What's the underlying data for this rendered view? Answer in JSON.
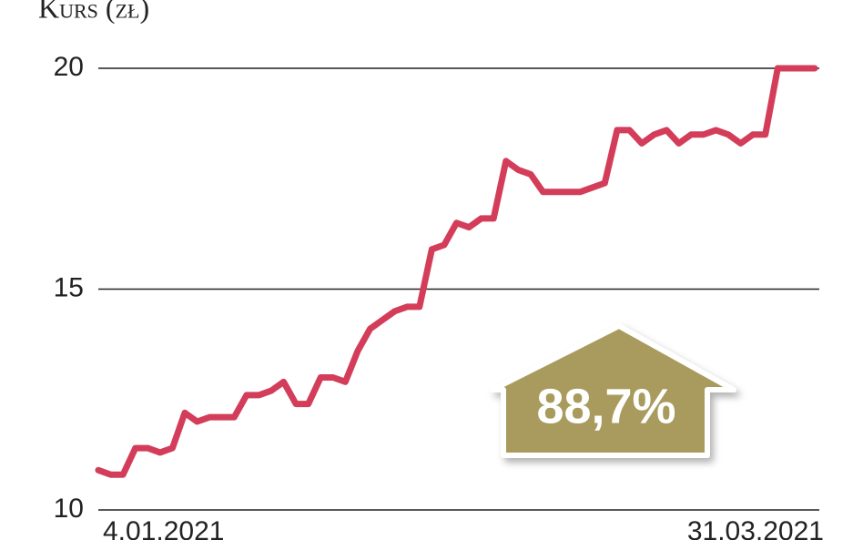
{
  "chart_data": {
    "type": "line",
    "title": "Kurs (zł)",
    "annotation": "88,7%",
    "categories": [
      "4.01.2021",
      null,
      null,
      null,
      null,
      null,
      null,
      null,
      null,
      null,
      null,
      null,
      null,
      null,
      null,
      null,
      null,
      null,
      null,
      null,
      null,
      null,
      null,
      null,
      null,
      null,
      null,
      null,
      null,
      null,
      null,
      null,
      null,
      null,
      null,
      null,
      null,
      null,
      null,
      null,
      null,
      null,
      null,
      null,
      null,
      null,
      null,
      null,
      null,
      null,
      null,
      null,
      null,
      null,
      null,
      null,
      null,
      null,
      "31.03.2021"
    ],
    "series": [
      {
        "color": "#d43d5a",
        "values": [
          10.9,
          10.8,
          10.8,
          11.4,
          11.4,
          11.3,
          11.4,
          12.2,
          12.0,
          12.1,
          12.1,
          12.1,
          12.6,
          12.6,
          12.7,
          12.9,
          12.4,
          12.4,
          13.0,
          13.0,
          12.9,
          13.6,
          14.1,
          14.3,
          14.5,
          14.6,
          14.6,
          15.9,
          16.0,
          16.5,
          16.4,
          16.6,
          16.6,
          17.9,
          17.7,
          17.6,
          17.2,
          17.2,
          17.2,
          17.2,
          17.3,
          17.4,
          18.6,
          18.6,
          18.3,
          18.5,
          18.6,
          18.3,
          18.5,
          18.5,
          18.6,
          18.5,
          18.3,
          18.5,
          18.5,
          20.0,
          20.0,
          20.0,
          20.0
        ]
      }
    ],
    "ylim": [
      10,
      20
    ],
    "yticks": [
      10,
      15,
      20
    ],
    "grid": true
  }
}
